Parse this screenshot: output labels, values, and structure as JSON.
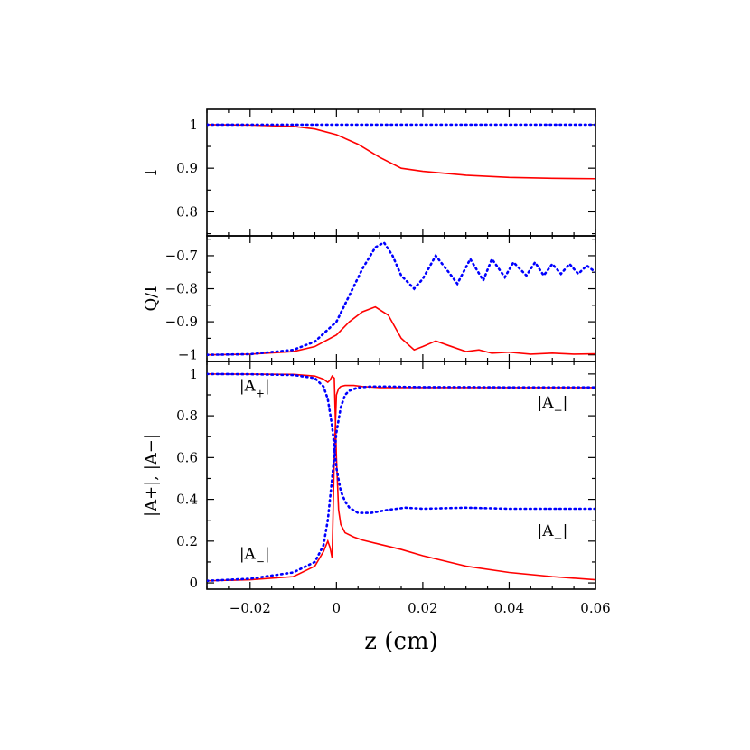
{
  "chart_data": {
    "type": "line",
    "x_axis": {
      "label": "z (cm)",
      "range": [
        -0.03,
        0.06
      ],
      "ticks": [
        -0.02,
        0,
        0.02,
        0.04,
        0.06
      ],
      "tick_labels": [
        "−0.02",
        "0",
        "0.02",
        "0.04",
        "0.06"
      ]
    },
    "series_styles": {
      "red": {
        "color": "#ff0000",
        "style": "solid"
      },
      "blue": {
        "color": "#0000ff",
        "style": "dotted"
      }
    },
    "panels": [
      {
        "ylabel": "I",
        "ylim": [
          0.745,
          1.035
        ],
        "yticks": [
          1,
          0.9,
          0.8
        ],
        "ytick_labels": [
          "1",
          "0.9",
          "0.8"
        ],
        "series": [
          {
            "style": "red",
            "x": [
              -0.03,
              -0.02,
              -0.01,
              -0.005,
              0,
              0.005,
              0.01,
              0.015,
              0.02,
              0.03,
              0.04,
              0.05,
              0.06
            ],
            "y": [
              1.0,
              0.999,
              0.996,
              0.99,
              0.977,
              0.955,
              0.925,
              0.9,
              0.893,
              0.884,
              0.879,
              0.877,
              0.876
            ]
          },
          {
            "style": "blue",
            "x": [
              -0.03,
              0.06
            ],
            "y": [
              1.0,
              1.0
            ]
          }
        ]
      },
      {
        "ylabel": "Q/I",
        "ylim": [
          -1.02,
          -0.64
        ],
        "yticks": [
          -0.7,
          -0.8,
          -0.9,
          -1
        ],
        "ytick_labels": [
          "−0.7",
          "−0.8",
          "−0.9",
          "−1"
        ],
        "series": [
          {
            "style": "red",
            "x": [
              -0.03,
              -0.02,
              -0.01,
              -0.005,
              0,
              0.003,
              0.006,
              0.009,
              0.012,
              0.015,
              0.018,
              0.02,
              0.023,
              0.026,
              0.03,
              0.033,
              0.036,
              0.04,
              0.045,
              0.05,
              0.055,
              0.06
            ],
            "y": [
              -1.0,
              -0.998,
              -0.99,
              -0.975,
              -0.94,
              -0.9,
              -0.87,
              -0.855,
              -0.88,
              -0.95,
              -0.985,
              -0.975,
              -0.958,
              -0.972,
              -0.99,
              -0.985,
              -0.995,
              -0.992,
              -0.998,
              -0.995,
              -0.998,
              -0.997
            ]
          },
          {
            "style": "blue",
            "x": [
              -0.03,
              -0.02,
              -0.01,
              -0.005,
              0,
              0.003,
              0.006,
              0.009,
              0.011,
              0.013,
              0.015,
              0.018,
              0.02,
              0.023,
              0.026,
              0.028,
              0.031,
              0.034,
              0.036,
              0.039,
              0.041,
              0.044,
              0.046,
              0.048,
              0.05,
              0.052,
              0.054,
              0.056,
              0.058,
              0.06
            ],
            "y": [
              -1.0,
              -0.998,
              -0.985,
              -0.96,
              -0.9,
              -0.82,
              -0.74,
              -0.675,
              -0.66,
              -0.7,
              -0.76,
              -0.8,
              -0.77,
              -0.7,
              -0.75,
              -0.785,
              -0.71,
              -0.775,
              -0.71,
              -0.765,
              -0.72,
              -0.76,
              -0.72,
              -0.76,
              -0.725,
              -0.755,
              -0.725,
              -0.755,
              -0.73,
              -0.75
            ]
          }
        ]
      },
      {
        "ylabel": "|A+|, |A−|",
        "ylim": [
          -0.03,
          1.06
        ],
        "yticks": [
          1,
          0.8,
          0.6,
          0.4,
          0.2,
          0
        ],
        "ytick_labels": [
          "1",
          "0.8",
          "0.6",
          "0.4",
          "0.2",
          "0"
        ],
        "series": [
          {
            "style": "red",
            "x": [
              -0.03,
              -0.02,
              -0.01,
              -0.005,
              -0.003,
              -0.002,
              -0.0015,
              -0.001,
              -0.0005,
              0,
              0.0005,
              0.001,
              0.002,
              0.004,
              0.006,
              0.01,
              0.015,
              0.02,
              0.03,
              0.04,
              0.05,
              0.06
            ],
            "y": [
              0.01,
              0.015,
              0.03,
              0.08,
              0.15,
              0.2,
              0.17,
              0.12,
              0.6,
              0.9,
              0.93,
              0.94,
              0.945,
              0.945,
              0.94,
              0.935,
              0.935,
              0.935,
              0.935,
              0.935,
              0.935,
              0.935
            ]
          },
          {
            "style": "red",
            "x": [
              -0.03,
              -0.02,
              -0.01,
              -0.005,
              -0.003,
              -0.002,
              -0.0015,
              -0.001,
              -0.0005,
              0,
              0.0005,
              0.001,
              0.002,
              0.004,
              0.006,
              0.01,
              0.015,
              0.02,
              0.03,
              0.04,
              0.05,
              0.06
            ],
            "y": [
              1.0,
              0.999,
              0.998,
              0.99,
              0.975,
              0.96,
              0.97,
              0.99,
              0.98,
              0.6,
              0.35,
              0.28,
              0.24,
              0.22,
              0.205,
              0.185,
              0.16,
              0.13,
              0.08,
              0.05,
              0.03,
              0.015
            ]
          },
          {
            "style": "blue",
            "x": [
              -0.03,
              -0.02,
              -0.01,
              -0.005,
              -0.003,
              -0.002,
              -0.001,
              0,
              0.001,
              0.002,
              0.003,
              0.005,
              0.008,
              0.012,
              0.016,
              0.02,
              0.03,
              0.04,
              0.05,
              0.06
            ],
            "y": [
              1.0,
              0.999,
              0.995,
              0.98,
              0.94,
              0.88,
              0.75,
              0.55,
              0.44,
              0.39,
              0.36,
              0.335,
              0.335,
              0.35,
              0.36,
              0.355,
              0.36,
              0.355,
              0.355,
              0.355
            ]
          },
          {
            "style": "blue",
            "x": [
              -0.03,
              -0.02,
              -0.01,
              -0.005,
              -0.003,
              -0.002,
              -0.001,
              0,
              0.001,
              0.002,
              0.003,
              0.005,
              0.008,
              0.012,
              0.016,
              0.02,
              0.03,
              0.04,
              0.05,
              0.06
            ],
            "y": [
              0.01,
              0.02,
              0.05,
              0.1,
              0.18,
              0.3,
              0.5,
              0.72,
              0.84,
              0.9,
              0.92,
              0.935,
              0.94,
              0.94,
              0.938,
              0.937,
              0.937,
              0.936,
              0.936,
              0.936
            ]
          }
        ],
        "annotations": [
          {
            "text": "|A+|",
            "base": "|A",
            "sub": "+",
            "close": "|",
            "x": -0.0225,
            "y": 0.92
          },
          {
            "text": "|A−|",
            "base": "|A",
            "sub": "−",
            "close": "|",
            "x": 0.0465,
            "y": 0.84
          },
          {
            "text": "|A−|",
            "base": "|A",
            "sub": "−",
            "close": "|",
            "x": -0.0225,
            "y": 0.115
          },
          {
            "text": "|A+|",
            "base": "|A",
            "sub": "+",
            "close": "|",
            "x": 0.0465,
            "y": 0.225
          }
        ]
      }
    ]
  }
}
